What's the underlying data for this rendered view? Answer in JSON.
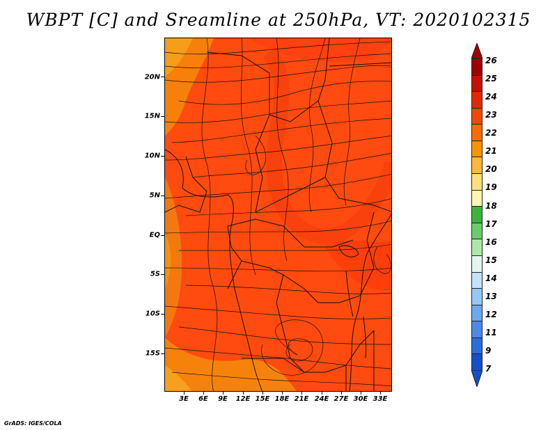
{
  "title": "WBPT [C] and Sreamline at 250hPa, VT: 2020102315",
  "credit": "GrADS: IGES/COLA",
  "lat_labels": [
    "20N",
    "15N",
    "10N",
    "5N",
    "EQ",
    "5S",
    "10S",
    "15S"
  ],
  "lon_labels": [
    "3E",
    "6E",
    "9E",
    "12E",
    "15E",
    "18E",
    "21E",
    "24E",
    "27E",
    "30E",
    "33E"
  ],
  "colorbar": {
    "labels": [
      "26",
      "25",
      "24",
      "23",
      "22",
      "21",
      "20",
      "19",
      "18",
      "17",
      "16",
      "15",
      "14",
      "13",
      "12",
      "11",
      "9",
      "7"
    ],
    "colors": [
      "#a00000",
      "#c81000",
      "#e22a00",
      "#f44800",
      "#fa6c00",
      "#fb9400",
      "#fbb83c",
      "#fde07a",
      "#fff6b4",
      "#3cb43c",
      "#6ccc6c",
      "#aee8a8",
      "#e2f6ee",
      "#c4e2fa",
      "#96c8f6",
      "#6ea8f0",
      "#4c8ae8",
      "#2a6edc",
      "#1450c8"
    ]
  }
}
